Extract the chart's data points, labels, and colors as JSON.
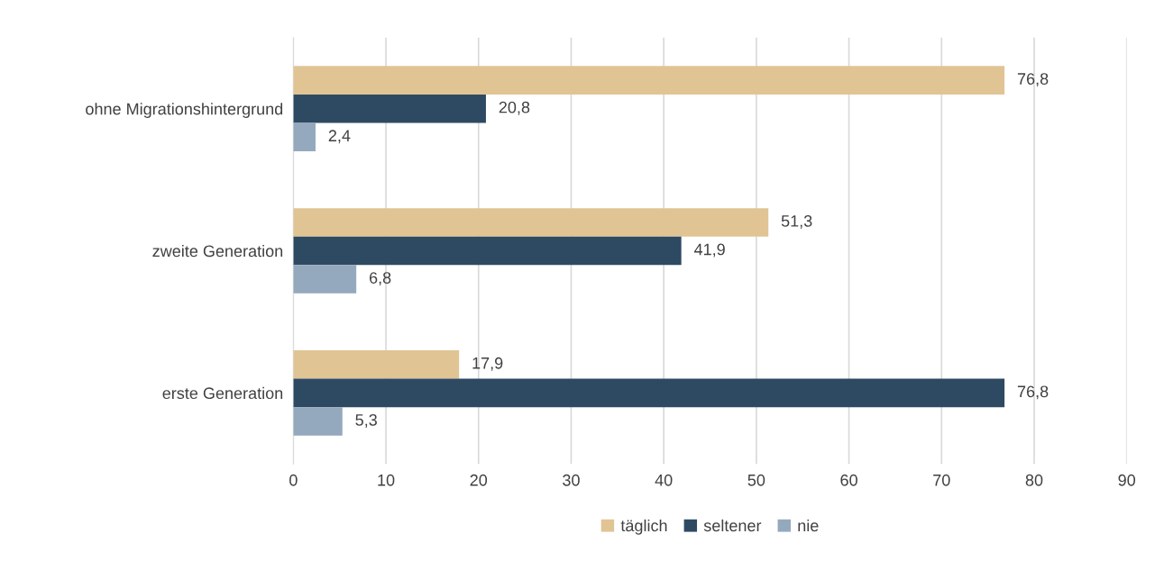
{
  "chart_data": {
    "type": "bar",
    "orientation": "horizontal",
    "categories": [
      "ohne Migrationshintergrund",
      "zweite Generation",
      "erste Generation"
    ],
    "series": [
      {
        "name": "täglich",
        "color": "#e0c494",
        "values": [
          76.8,
          51.3,
          17.9
        ],
        "value_labels": [
          "76,8",
          "51,3",
          "17,9"
        ]
      },
      {
        "name": "seltener",
        "color": "#2e4a63",
        "values": [
          20.8,
          41.9,
          76.8
        ],
        "value_labels": [
          "20,8",
          "41,9",
          "76,8"
        ]
      },
      {
        "name": "nie",
        "color": "#94a9bd",
        "values": [
          2.4,
          6.8,
          5.3
        ],
        "value_labels": [
          "2,4",
          "6,8",
          "5,3"
        ]
      }
    ],
    "xlim": [
      0,
      90
    ],
    "xticks": [
      0,
      10,
      20,
      30,
      40,
      50,
      60,
      70,
      80,
      90
    ],
    "grid": "x",
    "legend": "bottom"
  }
}
